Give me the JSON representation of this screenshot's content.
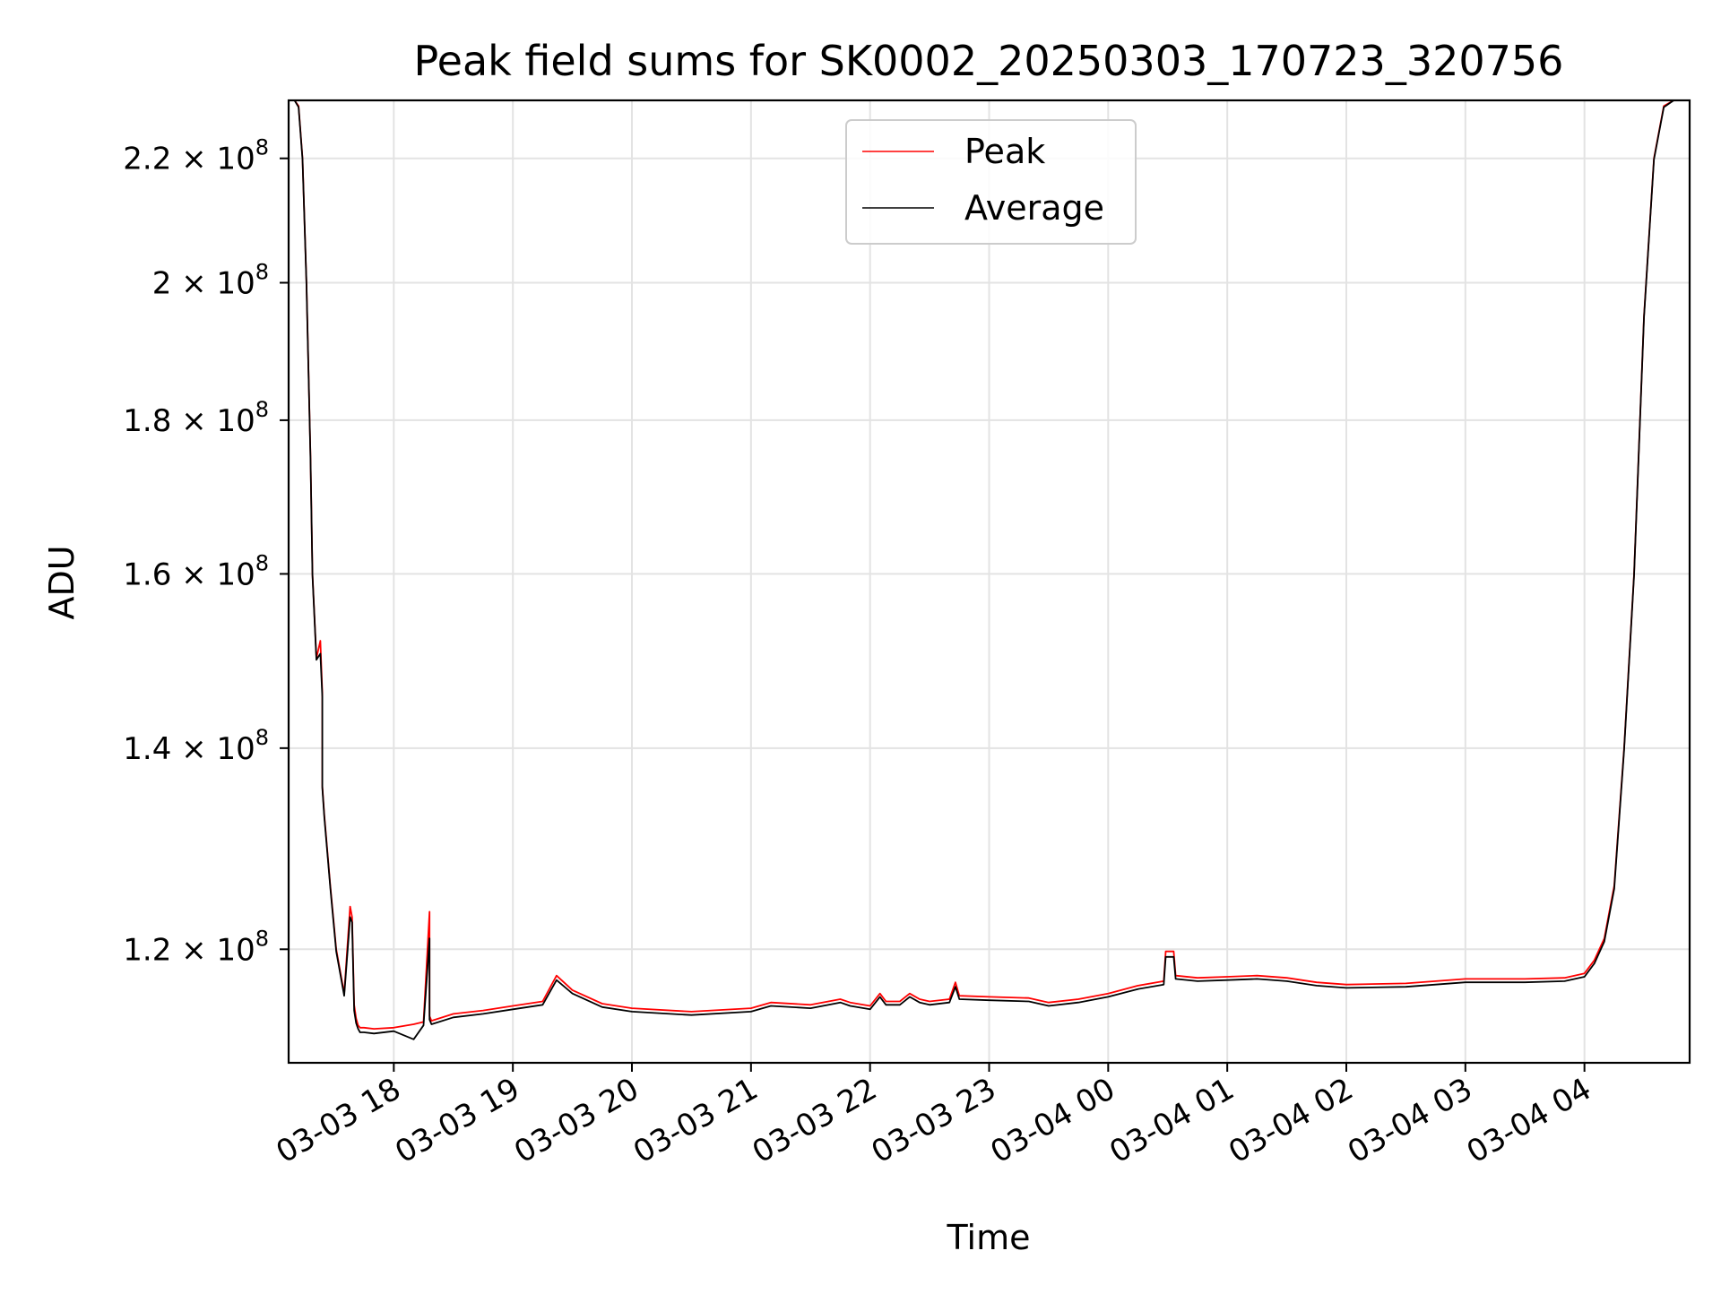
{
  "chart_data": {
    "type": "line",
    "title": "Peak field sums for SK0002_20250303_170723_320756",
    "xlabel": "Time",
    "ylabel": "ADU",
    "xlim": [
      "2025-03-03 17:07",
      "2025-03-04 04:53"
    ],
    "ylim": [
      110000000,
      230000000
    ],
    "y_scale": "log",
    "grid": true,
    "legend_position": "upper center",
    "x_ticks": [
      {
        "value": "2025-03-03 18:00",
        "label": "03-03 18"
      },
      {
        "value": "2025-03-03 19:00",
        "label": "03-03 19"
      },
      {
        "value": "2025-03-03 20:00",
        "label": "03-03 20"
      },
      {
        "value": "2025-03-03 21:00",
        "label": "03-03 21"
      },
      {
        "value": "2025-03-03 22:00",
        "label": "03-03 22"
      },
      {
        "value": "2025-03-03 23:00",
        "label": "03-03 23"
      },
      {
        "value": "2025-03-04 00:00",
        "label": "03-04 00"
      },
      {
        "value": "2025-03-04 01:00",
        "label": "03-04 01"
      },
      {
        "value": "2025-03-04 02:00",
        "label": "03-04 02"
      },
      {
        "value": "2025-03-04 03:00",
        "label": "03-04 03"
      },
      {
        "value": "2025-03-04 04:00",
        "label": "03-04 04"
      }
    ],
    "y_ticks": [
      {
        "value": 120000000,
        "mantissa": "1.2",
        "base": "10",
        "exp": "8"
      },
      {
        "value": 140000000,
        "mantissa": "1.4",
        "base": "10",
        "exp": "8"
      },
      {
        "value": 160000000,
        "mantissa": "1.6",
        "base": "10",
        "exp": "8"
      },
      {
        "value": 180000000,
        "mantissa": "1.8",
        "base": "10",
        "exp": "8"
      },
      {
        "value": 200000000,
        "mantissa": "2",
        "base": "10",
        "exp": "8"
      },
      {
        "value": 220000000,
        "mantissa": "2.2",
        "base": "10",
        "exp": "8"
      }
    ],
    "series": [
      {
        "name": "Peak",
        "color": "#ff0000",
        "x": [
          "2025-03-03 17:07",
          "2025-03-03 17:10",
          "2025-03-03 17:12",
          "2025-03-03 17:14",
          "2025-03-03 17:16",
          "2025-03-03 17:18",
          "2025-03-03 17:19",
          "2025-03-03 17:21",
          "2025-03-03 17:23",
          "2025-03-03 17:24",
          "2025-03-03 17:24",
          "2025-03-03 17:24",
          "2025-03-03 17:25",
          "2025-03-03 17:28",
          "2025-03-03 17:31",
          "2025-03-03 17:35",
          "2025-03-03 17:38",
          "2025-03-03 17:39",
          "2025-03-03 17:40",
          "2025-03-03 17:41",
          "2025-03-03 17:42",
          "2025-03-03 17:43",
          "2025-03-03 17:45",
          "2025-03-03 17:50",
          "2025-03-03 18:00",
          "2025-03-03 18:10",
          "2025-03-03 18:15",
          "2025-03-03 18:18",
          "2025-03-03 18:18",
          "2025-03-03 18:19",
          "2025-03-03 18:30",
          "2025-03-03 18:45",
          "2025-03-03 19:00",
          "2025-03-03 19:15",
          "2025-03-03 19:22",
          "2025-03-03 19:30",
          "2025-03-03 19:45",
          "2025-03-03 20:00",
          "2025-03-03 20:30",
          "2025-03-03 21:00",
          "2025-03-03 21:10",
          "2025-03-03 21:30",
          "2025-03-03 21:45",
          "2025-03-03 21:50",
          "2025-03-03 22:00",
          "2025-03-03 22:05",
          "2025-03-03 22:08",
          "2025-03-03 22:15",
          "2025-03-03 22:20",
          "2025-03-03 22:25",
          "2025-03-03 22:30",
          "2025-03-03 22:40",
          "2025-03-03 22:43",
          "2025-03-03 22:45",
          "2025-03-03 23:00",
          "2025-03-03 23:20",
          "2025-03-03 23:30",
          "2025-03-03 23:45",
          "2025-03-04 00:00",
          "2025-03-04 00:15",
          "2025-03-04 00:28",
          "2025-03-04 00:29",
          "2025-03-04 00:33",
          "2025-03-04 00:34",
          "2025-03-04 00:45",
          "2025-03-04 01:00",
          "2025-03-04 01:15",
          "2025-03-04 01:30",
          "2025-03-04 01:45",
          "2025-03-04 02:00",
          "2025-03-04 02:30",
          "2025-03-04 03:00",
          "2025-03-04 03:30",
          "2025-03-04 03:50",
          "2025-03-04 04:00",
          "2025-03-04 04:05",
          "2025-03-04 04:10",
          "2025-03-04 04:15",
          "2025-03-04 04:20",
          "2025-03-04 04:25",
          "2025-03-04 04:30",
          "2025-03-04 04:35",
          "2025-03-04 04:40",
          "2025-03-04 04:45",
          "2025-03-04 04:53"
        ],
        "y": [
          230000000,
          230000000,
          229000000,
          220000000,
          200000000,
          175000000,
          160000000,
          150000000,
          152000000,
          146000000,
          141000000,
          136000000,
          133000000,
          126000000,
          120000000,
          116000000,
          124000000,
          123000000,
          115000000,
          113800000,
          113200000,
          113000000,
          113000000,
          112900000,
          113000000,
          113300000,
          113500000,
          123500000,
          114000000,
          113600000,
          114200000,
          114500000,
          114900000,
          115300000,
          117600000,
          116300000,
          115100000,
          114700000,
          114400000,
          114700000,
          115200000,
          115000000,
          115500000,
          115200000,
          114900000,
          116000000,
          115300000,
          115300000,
          116000000,
          115500000,
          115300000,
          115500000,
          117000000,
          115800000,
          115700000,
          115600000,
          115200000,
          115500000,
          116000000,
          116700000,
          117100000,
          119800000,
          119800000,
          117600000,
          117400000,
          117500000,
          117600000,
          117400000,
          117000000,
          116800000,
          116900000,
          117300000,
          117300000,
          117400000,
          117800000,
          119000000,
          121000000,
          126000000,
          140000000,
          160000000,
          195000000,
          220000000,
          229000000,
          230000000,
          230000000
        ]
      },
      {
        "name": "Average",
        "color": "#000000",
        "x": [
          "2025-03-03 17:07",
          "2025-03-03 17:10",
          "2025-03-03 17:12",
          "2025-03-03 17:14",
          "2025-03-03 17:16",
          "2025-03-03 17:18",
          "2025-03-03 17:19",
          "2025-03-03 17:21",
          "2025-03-03 17:23",
          "2025-03-03 17:24",
          "2025-03-03 17:24",
          "2025-03-03 17:24",
          "2025-03-03 17:25",
          "2025-03-03 17:28",
          "2025-03-03 17:31",
          "2025-03-03 17:35",
          "2025-03-03 17:38",
          "2025-03-03 17:39",
          "2025-03-03 17:40",
          "2025-03-03 17:41",
          "2025-03-03 17:42",
          "2025-03-03 17:43",
          "2025-03-03 17:45",
          "2025-03-03 17:50",
          "2025-03-03 18:00",
          "2025-03-03 18:10",
          "2025-03-03 18:15",
          "2025-03-03 18:18",
          "2025-03-03 18:18",
          "2025-03-03 18:19",
          "2025-03-03 18:30",
          "2025-03-03 18:45",
          "2025-03-03 19:00",
          "2025-03-03 19:15",
          "2025-03-03 19:22",
          "2025-03-03 19:30",
          "2025-03-03 19:45",
          "2025-03-03 20:00",
          "2025-03-03 20:30",
          "2025-03-03 21:00",
          "2025-03-03 21:10",
          "2025-03-03 21:30",
          "2025-03-03 21:45",
          "2025-03-03 21:50",
          "2025-03-03 22:00",
          "2025-03-03 22:05",
          "2025-03-03 22:08",
          "2025-03-03 22:15",
          "2025-03-03 22:20",
          "2025-03-03 22:25",
          "2025-03-03 22:30",
          "2025-03-03 22:40",
          "2025-03-03 22:43",
          "2025-03-03 22:45",
          "2025-03-03 23:00",
          "2025-03-03 23:20",
          "2025-03-03 23:30",
          "2025-03-03 23:45",
          "2025-03-04 00:00",
          "2025-03-04 00:15",
          "2025-03-04 00:28",
          "2025-03-04 00:29",
          "2025-03-04 00:33",
          "2025-03-04 00:34",
          "2025-03-04 00:45",
          "2025-03-04 01:00",
          "2025-03-04 01:15",
          "2025-03-04 01:30",
          "2025-03-04 01:45",
          "2025-03-04 02:00",
          "2025-03-04 02:30",
          "2025-03-04 03:00",
          "2025-03-04 03:30",
          "2025-03-04 03:50",
          "2025-03-04 04:00",
          "2025-03-04 04:05",
          "2025-03-04 04:10",
          "2025-03-04 04:15",
          "2025-03-04 04:20",
          "2025-03-04 04:25",
          "2025-03-04 04:30",
          "2025-03-04 04:35",
          "2025-03-04 04:40",
          "2025-03-04 04:45",
          "2025-03-04 04:53"
        ],
        "y": [
          230000000,
          230000000,
          228800000,
          219800000,
          199800000,
          174800000,
          159800000,
          149800000,
          150500000,
          145600000,
          140800000,
          135800000,
          132800000,
          125800000,
          119800000,
          115800000,
          123000000,
          122500000,
          114500000,
          113400000,
          112900000,
          112600000,
          112600000,
          112500000,
          112700000,
          112000000,
          113200000,
          121000000,
          113700000,
          113300000,
          113900000,
          114200000,
          114600000,
          115000000,
          117200000,
          116000000,
          114800000,
          114400000,
          114100000,
          114400000,
          114900000,
          114700000,
          115200000,
          114900000,
          114600000,
          115700000,
          115000000,
          115000000,
          115700000,
          115200000,
          115000000,
          115200000,
          116600000,
          115500000,
          115400000,
          115300000,
          114900000,
          115200000,
          115700000,
          116400000,
          116800000,
          119300000,
          119300000,
          117300000,
          117100000,
          117200000,
          117300000,
          117100000,
          116700000,
          116500000,
          116600000,
          117000000,
          117000000,
          117100000,
          117500000,
          118700000,
          120700000,
          125700000,
          139800000,
          159800000,
          194800000,
          219800000,
          228800000,
          230000000,
          230000000
        ]
      }
    ]
  }
}
